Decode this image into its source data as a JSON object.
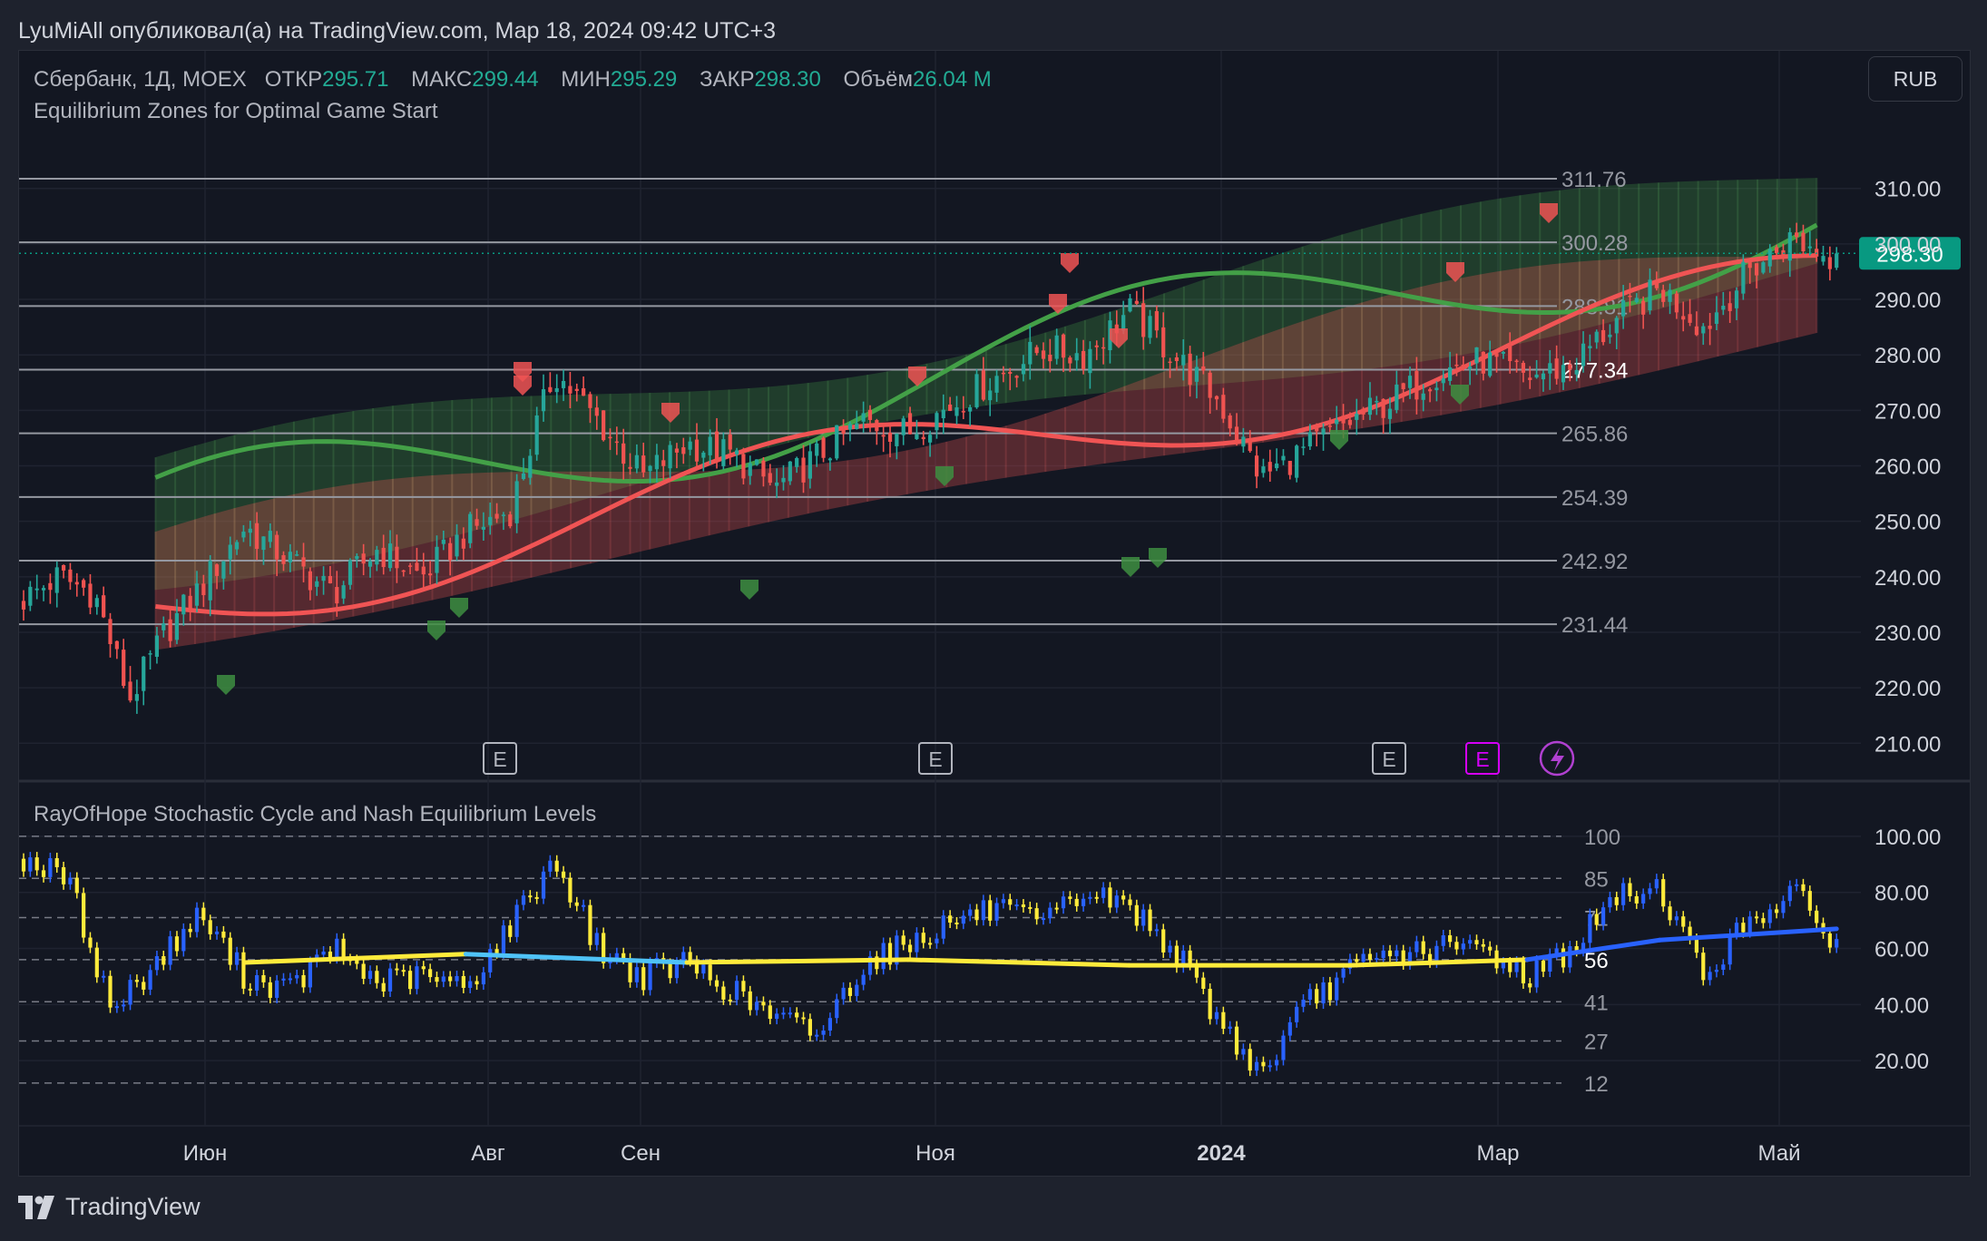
{
  "header": {
    "published_text": "LyuMiAll опубликовал(а) на TradingView.com, Мар 18, 2024 09:42 UTC+3"
  },
  "legend": {
    "symbol": "Сбербанк, 1Д, MOEX",
    "open_label": "ОТКР",
    "open_value": "295.71",
    "high_label": "МАКС",
    "high_value": "299.44",
    "low_label": "МИН",
    "low_value": "295.29",
    "close_label": "ЗАКР",
    "close_value": "298.30",
    "volume_label": "Объём",
    "volume_value": "26.04 M"
  },
  "currency_button": "RUB",
  "footer": {
    "brand": "TradingView"
  },
  "colors": {
    "background": "#131722",
    "up_candle": "#26a69a",
    "down_candle": "#ef5350",
    "green_line": "#43a047",
    "red_line": "#f05454",
    "price_badge": "#089981",
    "osc_blue": "#2962ff",
    "osc_yellow": "#ffeb3b"
  },
  "chart_data": [
    {
      "type": "line",
      "title": "Equilibrium Zones for Optimal Game Start",
      "symbol": "Сбербанк, 1Д, MOEX",
      "x_tick_labels": [
        "Июн",
        "Авг",
        "Сен",
        "Ноя",
        "2024",
        "Мар",
        "Май"
      ],
      "y_tick_labels": [
        "310.00",
        "300.00",
        "290.00",
        "280.00",
        "270.00",
        "260.00",
        "250.00",
        "240.00",
        "230.00",
        "220.00",
        "210.00"
      ],
      "ylim": [
        204,
        325
      ],
      "last_price": "298.30",
      "last_price_value": 298.3,
      "level_labels": [
        "311.76",
        "300.28",
        "288.81",
        "277.34",
        "265.86",
        "254.39",
        "242.92",
        "231.44"
      ],
      "levels": [
        311.76,
        300.28,
        288.81,
        277.34,
        265.86,
        254.39,
        242.92,
        231.44
      ],
      "close_path": {
        "x": [
          0,
          4,
          8,
          12,
          16,
          20,
          25,
          30,
          35,
          40,
          45,
          50,
          55,
          60,
          65,
          70,
          75,
          80,
          85,
          90,
          95,
          100,
          105,
          110,
          115,
          120,
          125,
          130,
          135,
          140,
          145,
          150,
          155,
          160,
          165,
          170,
          175,
          180,
          185,
          190,
          195,
          200,
          205
        ],
        "y": [
          236,
          240,
          237,
          218,
          230,
          238,
          249,
          243,
          237,
          245,
          240,
          248,
          252,
          277,
          268,
          258,
          264,
          262,
          256,
          262,
          268,
          266,
          271,
          276,
          281,
          280,
          288,
          280,
          272,
          258,
          263,
          268,
          272,
          277,
          279,
          276,
          278,
          286,
          292,
          285,
          295,
          301,
          297
        ]
      },
      "earnings_markers": [
        "E",
        "E",
        "E",
        "E"
      ],
      "earnings_marker_months": [
        "Авг",
        "Ноя",
        "2024",
        "Мар"
      ]
    },
    {
      "type": "line",
      "title": "RayOfHope Stochastic Cycle and Nash Equilibrium Levels",
      "y_tick_labels": [
        "100.00",
        "80.00",
        "60.00",
        "40.00",
        "20.00"
      ],
      "ylim": [
        0,
        110
      ],
      "level_labels": [
        "100",
        "85",
        "71",
        "56",
        "41",
        "27",
        "12"
      ],
      "levels": [
        100,
        85,
        71,
        56,
        41,
        27,
        12
      ],
      "oscillator": {
        "x": [
          0,
          5,
          10,
          15,
          20,
          25,
          30,
          35,
          40,
          45,
          50,
          55,
          60,
          65,
          70,
          75,
          80,
          85,
          90,
          95,
          100,
          105,
          110,
          115,
          120,
          125,
          130,
          135,
          140,
          145,
          150,
          155,
          160,
          165,
          170,
          175,
          180,
          185,
          190,
          195,
          200,
          205
        ],
        "y": [
          92,
          85,
          38,
          55,
          72,
          50,
          45,
          60,
          48,
          50,
          46,
          68,
          92,
          60,
          50,
          55,
          45,
          35,
          30,
          55,
          62,
          70,
          74,
          68,
          80,
          75,
          60,
          35,
          15,
          40,
          52,
          58,
          60,
          60,
          50,
          60,
          78,
          82,
          50,
          70,
          80,
          62
        ]
      },
      "signal": {
        "x": [
          25,
          50,
          75,
          100,
          125,
          150,
          170,
          185,
          205
        ],
        "y": [
          55,
          58,
          55,
          56,
          54,
          54,
          56,
          63,
          67
        ]
      }
    }
  ]
}
